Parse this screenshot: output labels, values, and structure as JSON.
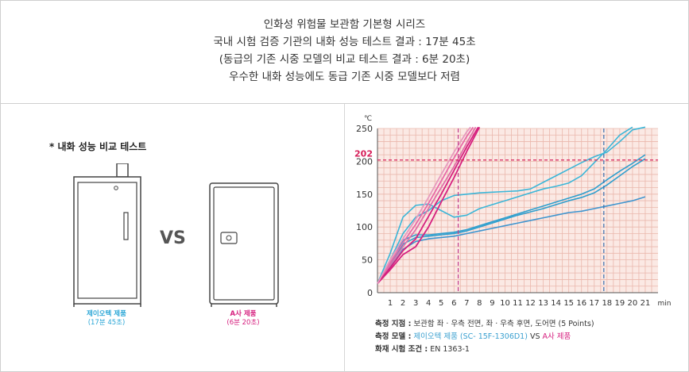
{
  "header": {
    "lines": [
      "인화성 위험물 보관함 기본형 시리즈",
      "국내 시험 검증 기관의 내화 성능 테스트 결과 : 17분 45초",
      "(동급의 기존 시중 모델의 비교 테스트 결과 : 6분 20초)",
      "우수한 내화 성능에도 동급 기존 시중 모델보다 저렴"
    ]
  },
  "comparison": {
    "title": "* 내화 성능 비교 테스트",
    "vs": "VS",
    "product_a": {
      "name": "제이오텍 제품",
      "time": "(17분 45초)",
      "color": "#2aa6d6"
    },
    "product_b": {
      "name": "A사 제품",
      "time": "(6분 20초)",
      "color": "#d6207f"
    }
  },
  "notes": {
    "points_label": "측정 지점 :",
    "points_value": "보관함 좌 · 우측 전면, 좌 · 우측 후면, 도어면 (5 Points)",
    "model_label": "측정 모델 :",
    "model_a": "제이오텍 제품 (SC- 15F-1306D1)",
    "model_vs": "VS",
    "model_b": "A사 제품",
    "cond_label": "화재 시험 조건 :",
    "cond_value": "EN 1363-1"
  },
  "chart_data": {
    "type": "line",
    "y_unit": "℃",
    "x_unit": "min",
    "xlim": [
      0,
      22
    ],
    "ylim": [
      0,
      250
    ],
    "x_ticks": [
      1,
      2,
      3,
      4,
      5,
      6,
      7,
      8,
      9,
      10,
      11,
      12,
      13,
      14,
      15,
      16,
      17,
      18,
      19,
      20,
      21
    ],
    "y_ticks": [
      0,
      50,
      100,
      150,
      200,
      250
    ],
    "threshold": {
      "y": 202,
      "label": "202",
      "color": "#d6205a"
    },
    "markers": [
      {
        "x": 6.33,
        "color": "#c23b8c"
      },
      {
        "x": 17.75,
        "color": "#3a6fb0"
      }
    ],
    "series": [
      {
        "group": "blue",
        "color": "#3bb6d8",
        "x": [
          0,
          1,
          2,
          3,
          4,
          5,
          6,
          7,
          8,
          9,
          10,
          11,
          12,
          13,
          14,
          15,
          16,
          17,
          18,
          19,
          20
        ],
        "y": [
          14,
          60,
          115,
          133,
          135,
          125,
          115,
          118,
          128,
          134,
          140,
          146,
          152,
          158,
          162,
          167,
          178,
          198,
          218,
          240,
          262
        ]
      },
      {
        "group": "blue",
        "color": "#3bb6d8",
        "x": [
          0,
          1,
          2,
          3,
          4,
          5,
          6,
          7,
          8,
          9,
          10,
          11,
          12,
          13,
          14,
          15,
          16,
          17,
          18,
          19,
          20,
          21
        ],
        "y": [
          14,
          50,
          90,
          115,
          125,
          140,
          148,
          150,
          152,
          153,
          154,
          155,
          158,
          168,
          178,
          188,
          198,
          207,
          214,
          230,
          248,
          262
        ]
      },
      {
        "group": "blue",
        "color": "#2f9fce",
        "x": [
          0,
          1,
          2,
          3,
          4,
          5,
          6,
          7,
          8,
          9,
          10,
          11,
          12,
          13,
          14,
          15,
          16,
          17,
          18,
          19,
          20,
          21
        ],
        "y": [
          14,
          42,
          80,
          88,
          88,
          90,
          92,
          96,
          102,
          108,
          114,
          120,
          126,
          132,
          138,
          144,
          150,
          158,
          172,
          185,
          197,
          210
        ]
      },
      {
        "group": "blue",
        "color": "#2f9fce",
        "x": [
          0,
          1,
          2,
          3,
          4,
          5,
          6,
          7,
          8,
          9,
          10,
          11,
          12,
          13,
          14,
          15,
          16,
          17,
          18,
          19,
          20,
          21
        ],
        "y": [
          14,
          40,
          74,
          84,
          86,
          88,
          90,
          94,
          100,
          106,
          112,
          118,
          123,
          128,
          134,
          140,
          145,
          152,
          164,
          178,
          192,
          204
        ]
      },
      {
        "group": "blue",
        "color": "#3f95cf",
        "x": [
          0,
          1,
          2,
          3,
          4,
          5,
          6,
          7,
          8,
          9,
          10,
          11,
          12,
          13,
          14,
          15,
          16,
          17,
          18,
          19,
          20,
          21
        ],
        "y": [
          14,
          38,
          66,
          78,
          82,
          84,
          86,
          90,
          94,
          98,
          102,
          106,
          110,
          114,
          118,
          122,
          124,
          128,
          132,
          136,
          140,
          146
        ]
      },
      {
        "group": "pink",
        "color": "#d6207f",
        "x": [
          0,
          1,
          2,
          3,
          4,
          5,
          6,
          7,
          8
        ],
        "y": [
          14,
          35,
          58,
          70,
          100,
          138,
          175,
          215,
          252
        ]
      },
      {
        "group": "pink",
        "color": "#e070a8",
        "x": [
          0,
          1,
          2,
          3,
          4,
          5,
          6,
          7,
          7.7
        ],
        "y": [
          14,
          42,
          70,
          96,
          128,
          160,
          192,
          228,
          252
        ]
      },
      {
        "group": "pink",
        "color": "#e86aa8",
        "x": [
          0,
          1,
          2,
          3,
          4,
          5,
          6,
          7,
          7.5
        ],
        "y": [
          14,
          46,
          76,
          104,
          136,
          170,
          205,
          238,
          252
        ]
      },
      {
        "group": "pink",
        "color": "#d6207f",
        "x": [
          0,
          1,
          2,
          3,
          4,
          5,
          6,
          7,
          7.9
        ],
        "y": [
          14,
          38,
          64,
          82,
          116,
          150,
          186,
          222,
          252
        ]
      },
      {
        "group": "pink",
        "color": "#e79abf",
        "x": [
          0,
          1,
          2,
          3,
          4,
          5,
          6,
          7,
          7.3
        ],
        "y": [
          14,
          50,
          82,
          112,
          145,
          180,
          214,
          245,
          252
        ]
      }
    ]
  }
}
